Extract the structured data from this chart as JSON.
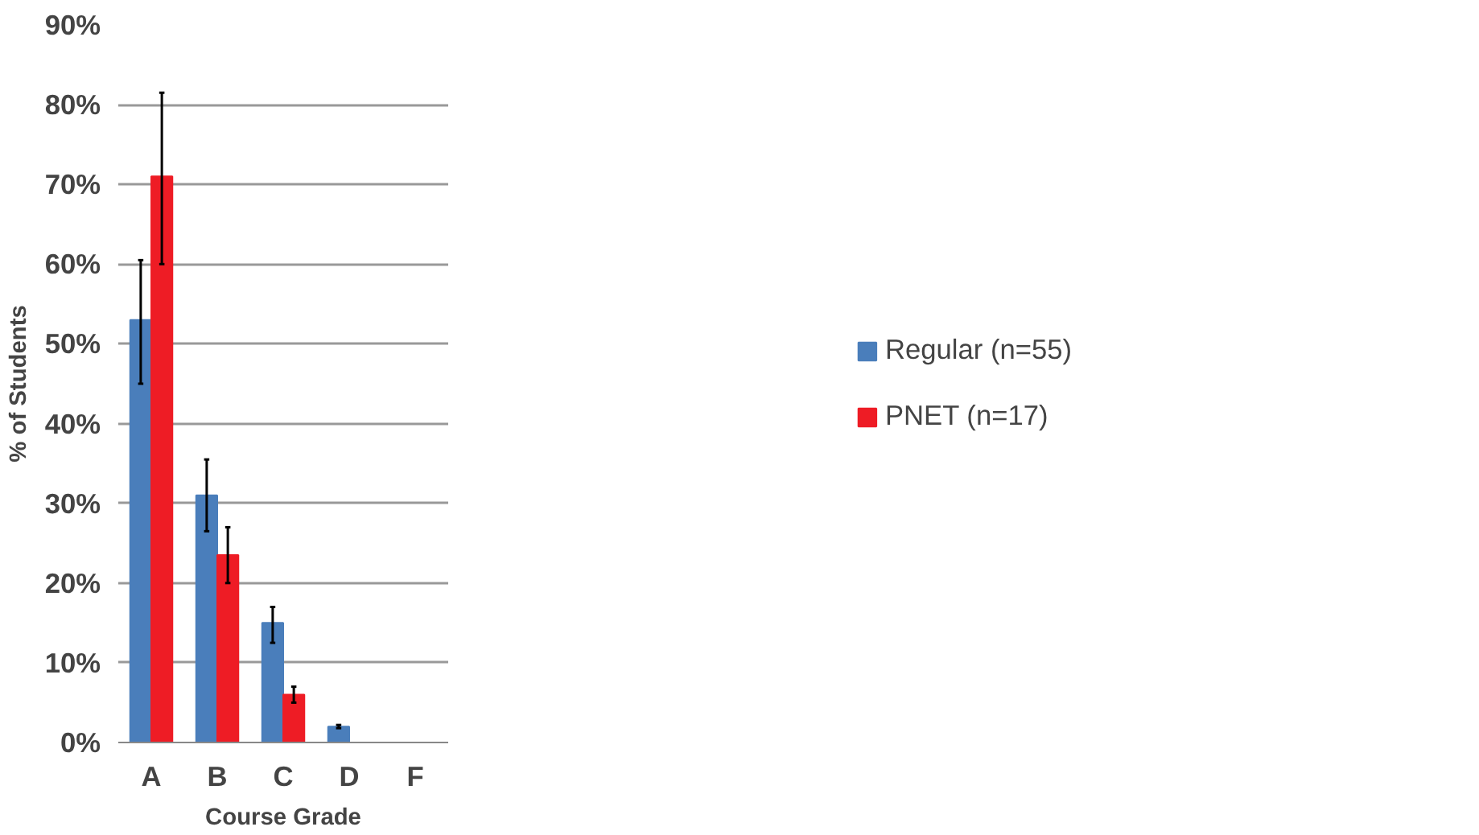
{
  "chart_data": {
    "type": "bar",
    "xlabel": "Course Grade",
    "ylabel": "% of Students",
    "categories": [
      "A",
      "B",
      "C",
      "D",
      "F"
    ],
    "series": [
      {
        "name": "Regular (n=55)",
        "color": "#4a7ebb",
        "values": [
          53,
          31,
          15,
          2,
          0
        ],
        "errors": [
          [
            45,
            60.5
          ],
          [
            26.5,
            35.5
          ],
          [
            12.5,
            17
          ],
          [
            1.8,
            2.2
          ],
          null
        ]
      },
      {
        "name": "PNET (n=17)",
        "color": "#ee1c25",
        "values": [
          71,
          23.5,
          6,
          0,
          0
        ],
        "errors": [
          [
            60,
            81.5
          ],
          [
            20,
            27
          ],
          [
            5,
            7
          ],
          null,
          null
        ]
      }
    ],
    "ylim": [
      0,
      90
    ],
    "yticks": [
      {
        "value": 0,
        "label": "0%"
      },
      {
        "value": 10,
        "label": "10%"
      },
      {
        "value": 20,
        "label": "20%"
      },
      {
        "value": 30,
        "label": "30%"
      },
      {
        "value": 40,
        "label": "40%"
      },
      {
        "value": 50,
        "label": "50%"
      },
      {
        "value": 60,
        "label": "60%"
      },
      {
        "value": 70,
        "label": "70%"
      },
      {
        "value": 80,
        "label": "80%"
      },
      {
        "value": 90,
        "label": "90%"
      }
    ],
    "grid": "y",
    "legend": "right"
  }
}
